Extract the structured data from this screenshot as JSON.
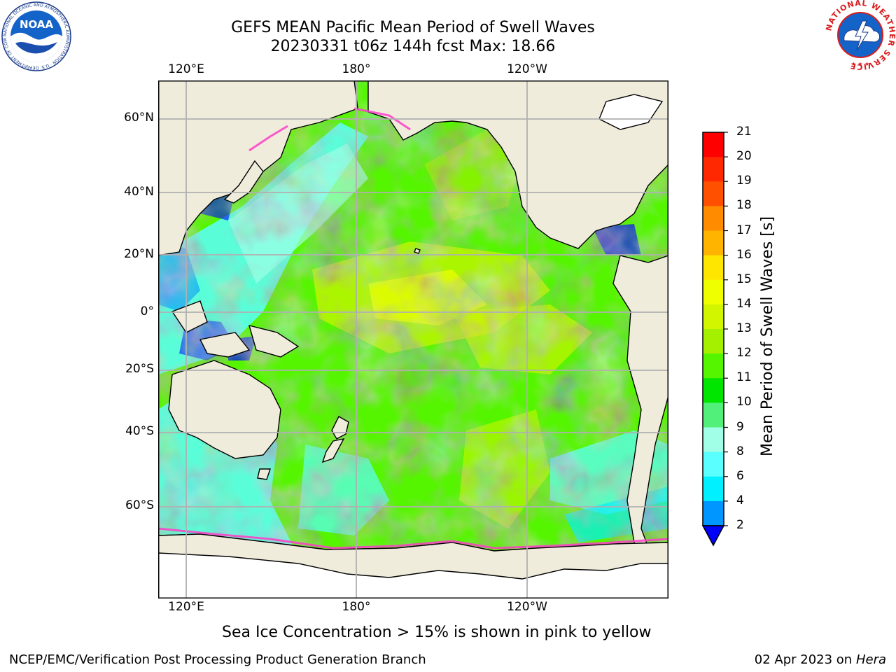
{
  "title": {
    "line1": "GEFS MEAN Pacific Mean Period of Swell Waves",
    "line2": "20230331 t06z 144h fcst   Max: 18.66"
  },
  "map": {
    "lon_labels": [
      "120°E",
      "180°",
      "120°W"
    ],
    "lat_labels": [
      "60°N",
      "40°N",
      "20°N",
      "0°",
      "20°S",
      "40°S",
      "60°S"
    ],
    "land_color": "#efecdc",
    "ice_color": "#ffffff",
    "grid_color": "#b0b0b0"
  },
  "colorbar": {
    "title": "Mean Period of Swell Waves [s]",
    "tick_labels": [
      "21",
      "20",
      "19",
      "18",
      "17",
      "16",
      "15",
      "14",
      "13",
      "12",
      "11",
      "10",
      "9",
      "8",
      "6",
      "4",
      "2"
    ],
    "bins": [
      {
        "from": "21",
        "to": "20",
        "color": "#ff0000"
      },
      {
        "from": "20",
        "to": "19",
        "color": "#ff2800"
      },
      {
        "from": "19",
        "to": "18",
        "color": "#ff5000"
      },
      {
        "from": "18",
        "to": "17",
        "color": "#ff8c00"
      },
      {
        "from": "17",
        "to": "16",
        "color": "#ffb400"
      },
      {
        "from": "16",
        "to": "15",
        "color": "#ffe600"
      },
      {
        "from": "15",
        "to": "14",
        "color": "#f0ff00"
      },
      {
        "from": "14",
        "to": "13",
        "color": "#d2f500"
      },
      {
        "from": "13",
        "to": "12",
        "color": "#a5f000"
      },
      {
        "from": "12",
        "to": "11",
        "color": "#55f500"
      },
      {
        "from": "11",
        "to": "10",
        "color": "#00e600"
      },
      {
        "from": "10",
        "to": "9",
        "color": "#50f07a"
      },
      {
        "from": "9",
        "to": "8",
        "color": "#a0ffe6"
      },
      {
        "from": "8",
        "to": "6",
        "color": "#5affff"
      },
      {
        "from": "6",
        "to": "4",
        "color": "#00f0ff"
      },
      {
        "from": "4",
        "to": "2",
        "color": "#0096ff"
      }
    ],
    "under_color": "#0000ff"
  },
  "note": "Sea Ice Concentration > 15% is shown in pink to yellow",
  "footer": {
    "left": "NCEP/EMC/Verification Post Processing Product Generation Branch",
    "right_date": "02 Apr 2023 on ",
    "right_machine": "Hera"
  },
  "logos": {
    "noaa_text": "NOAA",
    "noaa_ring_text": "NATIONAL OCEANIC AND ATMOSPHERIC ADMINISTRATION · U.S. DEPARTMENT OF COMMERCE",
    "nws_ring_text": "NATIONAL WEATHER SERVICE"
  }
}
